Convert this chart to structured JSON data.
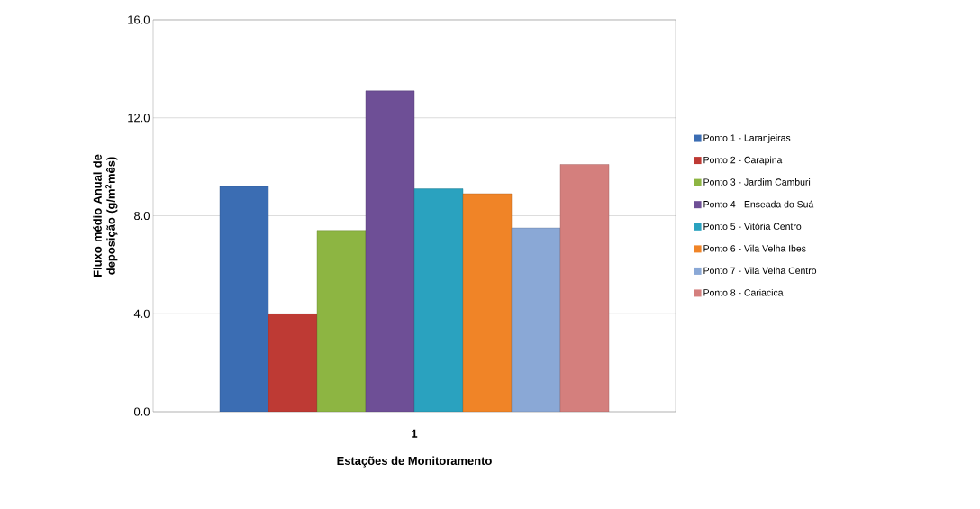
{
  "chart_data": {
    "type": "bar",
    "xlabel": "Estações de Monitoramento",
    "ylabel": "Fluxo médio Anual de deposição (g/m$^{2}$mês)",
    "categories": [
      "1"
    ],
    "series": [
      {
        "name": "Ponto 1 - Laranjeiras",
        "color": "#3b6db3",
        "values": [
          9.2
        ]
      },
      {
        "name": "Ponto 2 -  Carapina",
        "color": "#be3a34",
        "values": [
          4.0
        ]
      },
      {
        "name": "Ponto 3 - Jardim Camburi",
        "color": "#8db542",
        "values": [
          7.4
        ]
      },
      {
        "name": "Ponto 4 - Enseada do Suá",
        "color": "#6e4f96",
        "values": [
          13.1
        ]
      },
      {
        "name": "Ponto 5 - Vitória Centro",
        "color": "#2aa2bf",
        "values": [
          9.1
        ]
      },
      {
        "name": "Ponto 6 - Vila Velha Ibes",
        "color": "#f08427",
        "values": [
          8.9
        ]
      },
      {
        "name": "Ponto 7 - Vila Velha Centro",
        "color": "#8aa8d6",
        "values": [
          7.5
        ]
      },
      {
        "name": "Ponto 8 - Cariacica",
        "color": "#d47f7d",
        "values": [
          10.1
        ]
      }
    ],
    "ylim": [
      0,
      16
    ],
    "yticks": [
      {
        "value": 0,
        "label": "0.0"
      },
      {
        "value": 4,
        "label": "4.0"
      },
      {
        "value": 8,
        "label": "8.0"
      },
      {
        "value": 12,
        "label": "12.0"
      },
      {
        "value": 16,
        "label": "16.0"
      }
    ],
    "grid": "y",
    "legend": "right"
  }
}
